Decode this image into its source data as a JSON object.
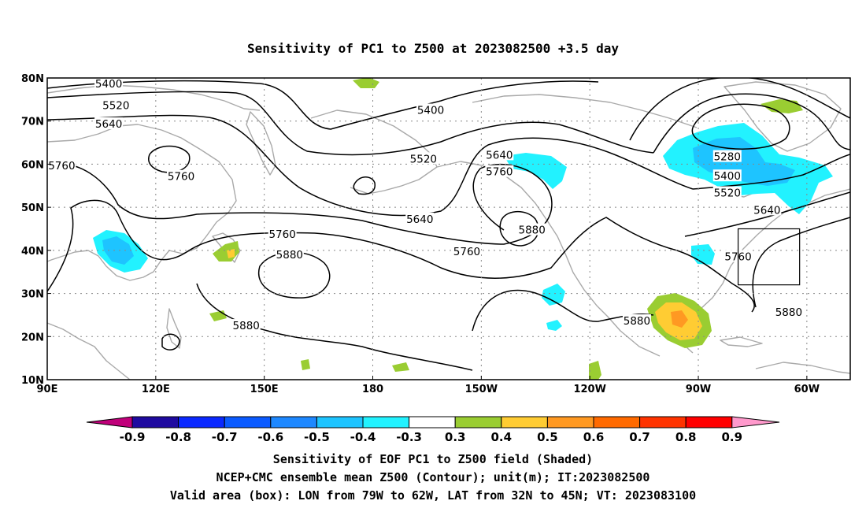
{
  "title": "Sensitivity of PC1 to Z500 at 2023082500 +3.5 day",
  "axes": {
    "lat_ticks": [
      "80N",
      "70N",
      "60N",
      "50N",
      "40N",
      "30N",
      "20N",
      "10N"
    ],
    "lon_ticks": [
      "90E",
      "120E",
      "150E",
      "180",
      "150W",
      "120W",
      "90W",
      "60W"
    ]
  },
  "contour_labels": [
    {
      "text": "5400",
      "lon": 107,
      "lat": 78.7
    },
    {
      "text": "5520",
      "lon": 109,
      "lat": 73.7
    },
    {
      "text": "5640",
      "lon": 107,
      "lat": 69.4
    },
    {
      "text": "5400",
      "lon": 196,
      "lat": 72.6
    },
    {
      "text": "5520",
      "lon": 194,
      "lat": 61.3
    },
    {
      "text": "5640",
      "lon": 215,
      "lat": 62.2
    },
    {
      "text": "5760",
      "lon": 215,
      "lat": 58.3
    },
    {
      "text": "5760",
      "lon": 94,
      "lat": 59.7
    },
    {
      "text": "5760",
      "lon": 127,
      "lat": 57.2
    },
    {
      "text": "5760",
      "lon": 155,
      "lat": 43.8
    },
    {
      "text": "5880",
      "lon": 157,
      "lat": 39.1
    },
    {
      "text": "5640",
      "lon": 193,
      "lat": 47.3
    },
    {
      "text": "5760",
      "lon": 206,
      "lat": 39.8
    },
    {
      "text": "5880",
      "lon": 224,
      "lat": 44.8
    },
    {
      "text": "5280",
      "lon": 278,
      "lat": 61.8
    },
    {
      "text": "5400",
      "lon": 278,
      "lat": 57.3
    },
    {
      "text": "5520",
      "lon": 278,
      "lat": 53.4
    },
    {
      "text": "5640",
      "lon": 289,
      "lat": 49.4
    },
    {
      "text": "5760",
      "lon": 281,
      "lat": 38.6
    },
    {
      "text": "5880",
      "lon": 145,
      "lat": 22.6
    },
    {
      "text": "5880",
      "lon": 253,
      "lat": 23.7
    },
    {
      "text": "5880",
      "lon": 295,
      "lat": 25.7
    }
  ],
  "colorbar": {
    "labels": [
      "-0.9",
      "-0.8",
      "-0.7",
      "-0.6",
      "-0.5",
      "-0.4",
      "-0.3",
      "0.3",
      "0.4",
      "0.5",
      "0.6",
      "0.7",
      "0.8",
      "0.9"
    ],
    "colors": [
      "#1f0aa0",
      "#0a28ff",
      "#0a5aff",
      "#1e88ff",
      "#1ec4ff",
      "#22f2ff",
      "#ffffff",
      "#9acd32",
      "#ffcc33",
      "#ff9922",
      "#ff6a00",
      "#ff3300",
      "#ff0000"
    ],
    "under_color": "#c0007a",
    "over_color": "#ff99cc"
  },
  "valid_box": {
    "lon_min": "79W",
    "lon_max": "62W",
    "lat_min": "32N",
    "lat_max": "45N"
  },
  "caption": [
    "Sensitivity of EOF PC1 to Z500 field (Shaded)",
    "NCEP+CMC ensemble mean Z500 (Contour); unit(m); IT:2023082500",
    "Valid area (box): LON from 79W to 62W, LAT from 32N to 45N; VT: 2023083100"
  ]
}
